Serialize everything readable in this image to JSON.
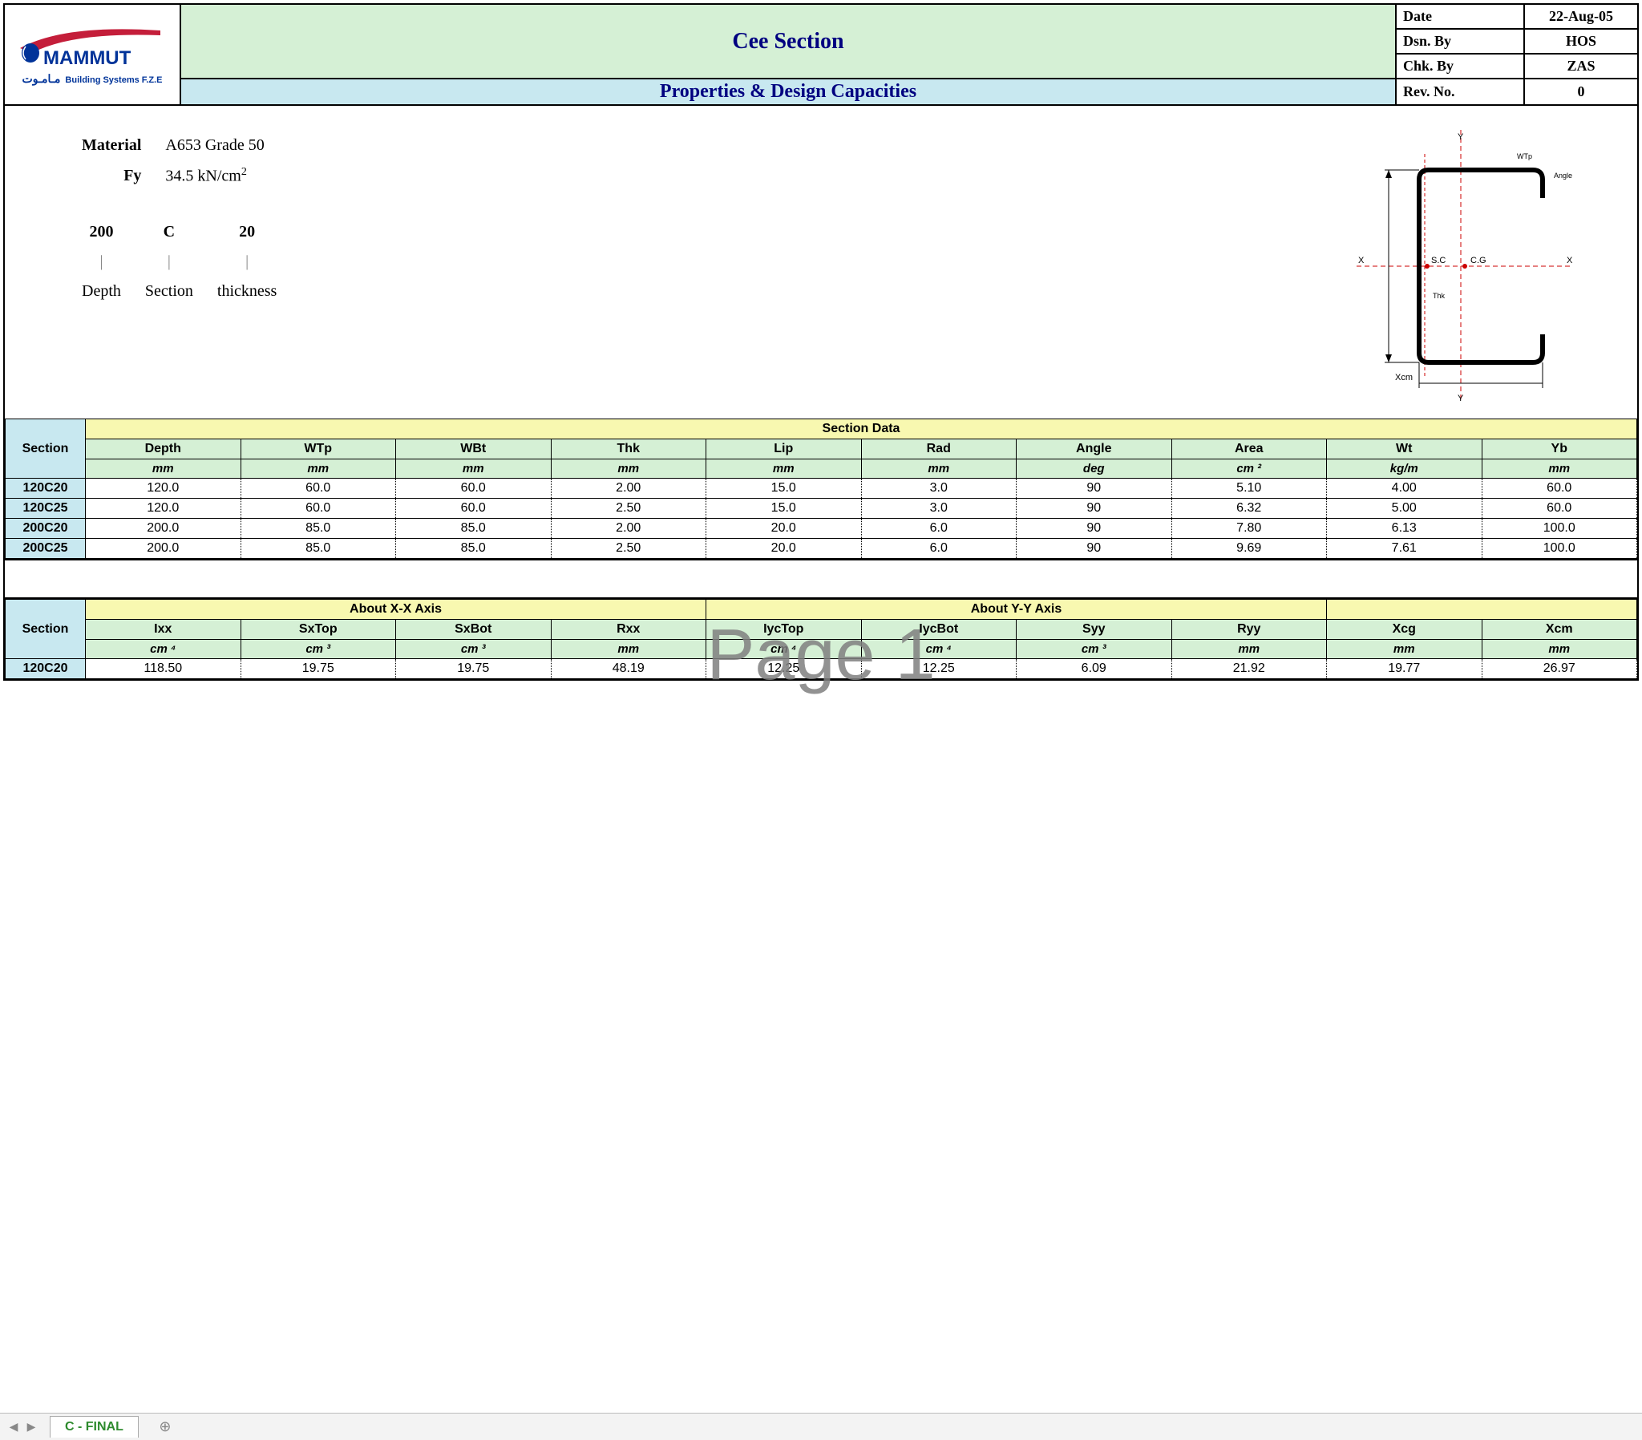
{
  "header": {
    "title": "Cee Section",
    "subtitle": "Properties & Design Capacities",
    "logo_text": "MAMMUT",
    "logo_sub": "Building Systems F.Z.E",
    "logo_arabic": "مـامـوت",
    "colors": {
      "title_bg": "#d5f0d5",
      "subtitle_bg": "#c8e8f0",
      "title_fg": "#000080"
    },
    "info": [
      {
        "label": "Date",
        "value": "22-Aug-05"
      },
      {
        "label": "Dsn. By",
        "value": "HOS"
      },
      {
        "label": "Chk. By",
        "value": "ZAS"
      },
      {
        "label": "Rev. No.",
        "value": "0"
      }
    ]
  },
  "props": {
    "material_label": "Material",
    "material_value": "A653 Grade 50",
    "fy_label": "Fy",
    "fy_value_html": "34.5 kN/cm²",
    "key": {
      "depth_val": "200",
      "section_val": "C",
      "thick_val": "20",
      "depth_lbl": "Depth",
      "section_lbl": "Section",
      "thick_lbl": "thickness"
    },
    "diagram_labels": {
      "sc": "S.C",
      "cg": "C.G",
      "x": "X",
      "y": "Y"
    }
  },
  "watermark": "Page 1",
  "table1": {
    "colors": {
      "span_bg": "#f8f8b0",
      "head_bg": "#d5f0d5",
      "section_bg": "#c8e8f0"
    },
    "section_header": "Section",
    "span_header": "Section Data",
    "columns": [
      {
        "name": "Depth",
        "unit_html": "mm"
      },
      {
        "name": "WTp",
        "unit_html": "mm"
      },
      {
        "name": "WBt",
        "unit_html": "mm"
      },
      {
        "name": "Thk",
        "unit_html": "mm"
      },
      {
        "name": "Lip",
        "unit_html": "mm"
      },
      {
        "name": "Rad",
        "unit_html": "mm"
      },
      {
        "name": "Angle",
        "unit_html": "deg"
      },
      {
        "name": "Area",
        "unit_html": "cm ²"
      },
      {
        "name": "Wt",
        "unit_html": "kg/m"
      },
      {
        "name": "Yb",
        "unit_html": "mm"
      }
    ],
    "rows": [
      {
        "section": "120C20",
        "cells": [
          "120.0",
          "60.0",
          "60.0",
          "2.00",
          "15.0",
          "3.0",
          "90",
          "5.10",
          "4.00",
          "60.0"
        ]
      },
      {
        "section": "120C25",
        "cells": [
          "120.0",
          "60.0",
          "60.0",
          "2.50",
          "15.0",
          "3.0",
          "90",
          "6.32",
          "5.00",
          "60.0"
        ]
      },
      {
        "section": "200C20",
        "cells": [
          "200.0",
          "85.0",
          "85.0",
          "2.00",
          "20.0",
          "6.0",
          "90",
          "7.80",
          "6.13",
          "100.0"
        ]
      },
      {
        "section": "200C25",
        "cells": [
          "200.0",
          "85.0",
          "85.0",
          "2.50",
          "20.0",
          "6.0",
          "90",
          "9.69",
          "7.61",
          "100.0"
        ]
      }
    ]
  },
  "table2": {
    "section_header": "Section",
    "span_xx": "About X-X Axis",
    "span_yy": "About Y-Y Axis",
    "columns": [
      {
        "name": "Ixx",
        "unit_html": "cm ⁴",
        "group": "xx"
      },
      {
        "name": "SxTop",
        "unit_html": "cm ³",
        "group": "xx"
      },
      {
        "name": "SxBot",
        "unit_html": "cm ³",
        "group": "xx"
      },
      {
        "name": "Rxx",
        "unit_html": "mm",
        "group": "xx"
      },
      {
        "name": "IycTop",
        "unit_html": "cm ⁴",
        "group": "yy"
      },
      {
        "name": "IycBot",
        "unit_html": "cm ⁴",
        "group": "yy"
      },
      {
        "name": "Syy",
        "unit_html": "cm ³",
        "group": "yy"
      },
      {
        "name": "Ryy",
        "unit_html": "mm",
        "group": "yy"
      },
      {
        "name": "Xcg",
        "unit_html": "mm",
        "group": ""
      },
      {
        "name": "Xcm",
        "unit_html": "mm",
        "group": ""
      }
    ],
    "rows": [
      {
        "section": "120C20",
        "cells": [
          "118.50",
          "19.75",
          "19.75",
          "48.19",
          "12.25",
          "12.25",
          "6.09",
          "21.92",
          "19.77",
          "26.97"
        ]
      }
    ]
  },
  "tabs": {
    "active": "C - FINAL"
  }
}
